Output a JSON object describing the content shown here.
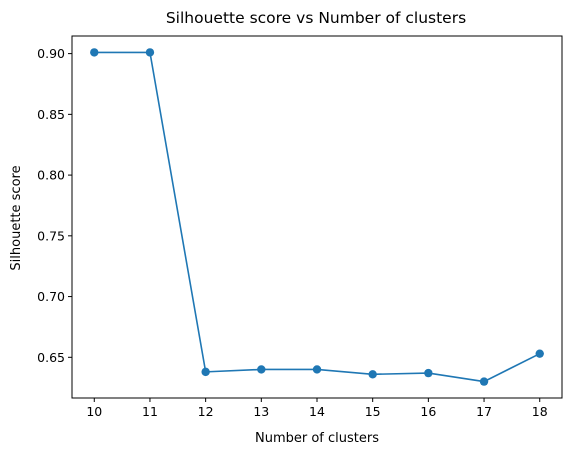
{
  "chart_data": {
    "type": "line",
    "title": "Silhouette score vs Number of clusters",
    "xlabel": "Number of clusters",
    "ylabel": "Silhouette score",
    "x": [
      10,
      11,
      12,
      13,
      14,
      15,
      16,
      17,
      18
    ],
    "series": [
      {
        "values": [
          0.901,
          0.901,
          0.638,
          0.64,
          0.64,
          0.636,
          0.637,
          0.63,
          0.653
        ],
        "color": "#1f77b4",
        "marker": "circle"
      }
    ],
    "xticks": [
      "10",
      "11",
      "12",
      "13",
      "14",
      "15",
      "16",
      "17",
      "18"
    ],
    "yticks": [
      "0.65",
      "0.70",
      "0.75",
      "0.80",
      "0.85",
      "0.90"
    ],
    "xlim": [
      9.6,
      18.4
    ],
    "ylim": [
      0.6165,
      0.9145
    ],
    "grid": false
  }
}
